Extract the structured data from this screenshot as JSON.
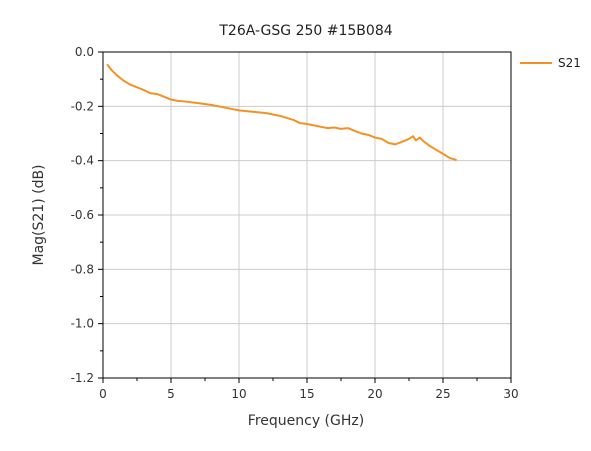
{
  "colors": {
    "series": "#f39222",
    "grid": "#cccccc",
    "axis": "#000000"
  },
  "chart_data": {
    "type": "line",
    "title": "T26A-GSG 250 #15B084",
    "xlabel": "Frequency (GHz)",
    "ylabel": "Mag(S21) (dB)",
    "xlim": [
      0,
      30
    ],
    "ylim": [
      -1.2,
      0.0
    ],
    "xticks": [
      0,
      5,
      10,
      15,
      20,
      25,
      30
    ],
    "xtick_labels": [
      "0",
      "5",
      "10",
      "15",
      "20",
      "25",
      "30"
    ],
    "yticks": [
      0.0,
      -0.2,
      -0.4,
      -0.6,
      -0.8,
      -1.0,
      -1.2
    ],
    "ytick_labels": [
      "0.0",
      "-0.2",
      "-0.4",
      "-0.6",
      "-0.8",
      "-1.0",
      "-1.2"
    ],
    "grid": true,
    "legend_position": "top-right-outside",
    "series": [
      {
        "name": "S21",
        "x": [
          0.3,
          0.6,
          1.0,
          1.5,
          2.0,
          2.5,
          3.0,
          3.5,
          4.0,
          4.5,
          5.0,
          5.5,
          6.0,
          7.0,
          8.0,
          9.0,
          10.0,
          11.0,
          12.0,
          13.0,
          14.0,
          14.5,
          15.0,
          15.5,
          16.0,
          16.5,
          17.0,
          17.5,
          18.0,
          18.5,
          19.0,
          19.5,
          20.0,
          20.5,
          21.0,
          21.5,
          22.0,
          22.5,
          22.8,
          23.0,
          23.3,
          23.6,
          24.0,
          24.5,
          25.0,
          25.5,
          26.0
        ],
        "values": [
          -0.045,
          -0.065,
          -0.085,
          -0.105,
          -0.12,
          -0.13,
          -0.14,
          -0.152,
          -0.155,
          -0.165,
          -0.175,
          -0.18,
          -0.182,
          -0.188,
          -0.195,
          -0.205,
          -0.215,
          -0.22,
          -0.225,
          -0.235,
          -0.25,
          -0.262,
          -0.265,
          -0.27,
          -0.275,
          -0.28,
          -0.278,
          -0.283,
          -0.28,
          -0.29,
          -0.3,
          -0.305,
          -0.315,
          -0.32,
          -0.335,
          -0.34,
          -0.33,
          -0.32,
          -0.31,
          -0.325,
          -0.315,
          -0.33,
          -0.345,
          -0.36,
          -0.375,
          -0.39,
          -0.398
        ]
      }
    ]
  }
}
